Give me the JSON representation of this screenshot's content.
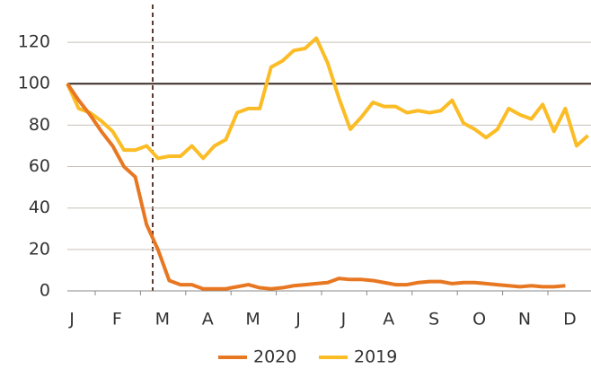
{
  "chart_data": {
    "type": "line",
    "categories": [
      "J",
      null,
      null,
      null,
      "F",
      null,
      null,
      null,
      "M",
      null,
      null,
      null,
      "A",
      null,
      null,
      null,
      "M",
      null,
      null,
      null,
      "J",
      null,
      null,
      null,
      "J",
      null,
      null,
      null,
      "A",
      null,
      null,
      null,
      "S",
      null,
      null,
      null,
      "O",
      null,
      null,
      null,
      "N",
      null,
      null,
      null,
      "D",
      null,
      null
    ],
    "series": [
      {
        "name": "2020",
        "color": "#e87722",
        "values": [
          100,
          92,
          85,
          77,
          70,
          60,
          55,
          32,
          20,
          5,
          3,
          3,
          1,
          1,
          1,
          2,
          3,
          1.5,
          1,
          1.5,
          2.5,
          3,
          3.5,
          4,
          6,
          5.5,
          5.5,
          5,
          4,
          3,
          3,
          4,
          4.5,
          4.5,
          3.5,
          4,
          4,
          3.5,
          3,
          2.5,
          2,
          2.5,
          2,
          2,
          2.5,
          null,
          null
        ]
      },
      {
        "name": "2019",
        "color": "#fbbc26",
        "values": [
          100,
          88,
          86,
          82,
          77,
          68,
          68,
          70,
          64,
          65,
          65,
          70,
          64,
          70,
          73,
          86,
          88,
          88,
          108,
          111,
          116,
          117,
          122,
          110,
          93,
          78,
          84,
          91,
          89,
          89,
          86,
          87,
          86,
          87,
          92,
          81,
          78,
          74,
          78,
          88,
          85,
          83,
          90,
          77,
          88,
          70,
          75
        ]
      }
    ],
    "ylim": [
      0,
      130
    ],
    "yticks": [
      0,
      20,
      40,
      60,
      80,
      100,
      120
    ],
    "grid": true,
    "hline": 100,
    "legend": "bottom"
  }
}
